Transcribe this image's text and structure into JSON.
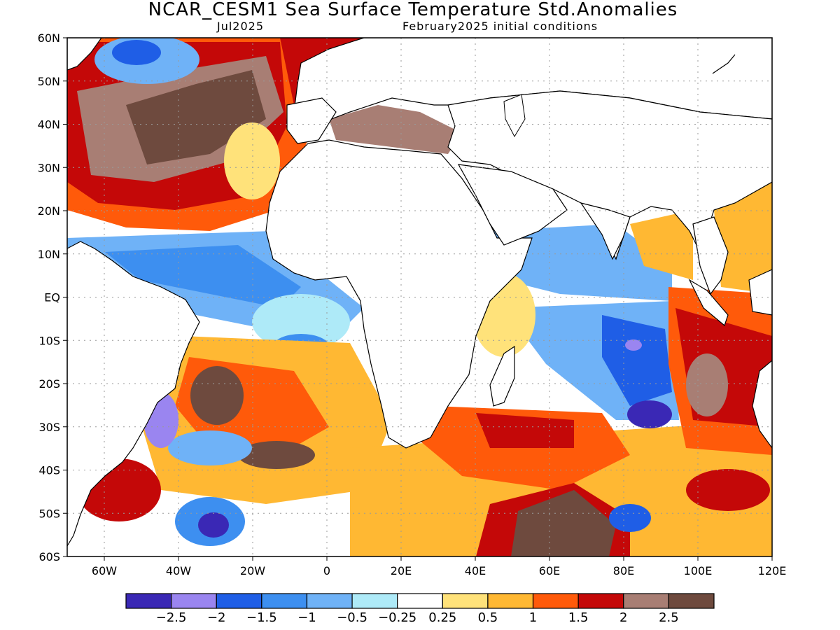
{
  "title": "NCAR_CESM1 Sea Surface Temperature Std.Anomalies",
  "subtitle_left": "Jul2025",
  "subtitle_right": "February2025 initial conditions",
  "map": {
    "lon_range": [
      -70,
      120
    ],
    "lat_range": [
      -60,
      60
    ],
    "lat_ticks": [
      "60N",
      "50N",
      "40N",
      "30N",
      "20N",
      "10N",
      "EQ",
      "10S",
      "20S",
      "30S",
      "40S",
      "50S",
      "60S"
    ],
    "lon_ticks": [
      {
        "lon": -60,
        "label": "60W"
      },
      {
        "lon": -40,
        "label": "40W"
      },
      {
        "lon": -20,
        "label": "20W"
      },
      {
        "lon": 0,
        "label": "0"
      },
      {
        "lon": 20,
        "label": "20E"
      },
      {
        "lon": 40,
        "label": "40E"
      },
      {
        "lon": 60,
        "label": "60E"
      },
      {
        "lon": 80,
        "label": "80E"
      },
      {
        "lon": 100,
        "label": "100E"
      },
      {
        "lon": 120,
        "label": "120E"
      }
    ],
    "grid": true,
    "land_color": "#ffffff"
  },
  "colorbar": {
    "colors": [
      "#3a28b5",
      "#9a85f0",
      "#1f5ee6",
      "#3d8ff0",
      "#6fb2f7",
      "#aeeaf8",
      "#ffffff",
      "#ffe27a",
      "#ffb833",
      "#ff5a0a",
      "#c40808",
      "#a87e74",
      "#6e4a3e"
    ],
    "labels": [
      "-2.5",
      "-2",
      "-1.5",
      "-1",
      "-0.5",
      "-0.25",
      "0.25",
      "0.5",
      "1",
      "1.5",
      "2",
      "2.5"
    ]
  }
}
